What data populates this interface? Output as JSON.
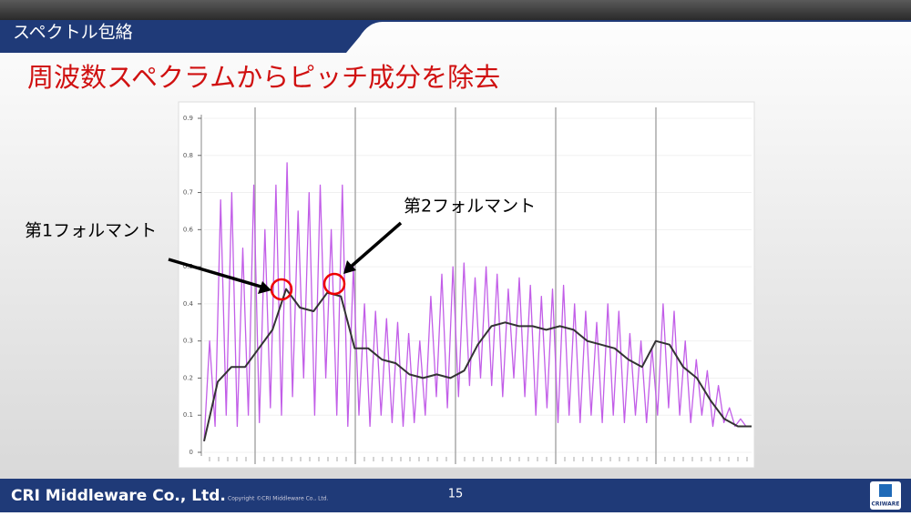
{
  "header": {
    "section": "スペクトル包絡",
    "title": "周波数スペクラムからピッチ成分を除去"
  },
  "chart_data": {
    "type": "line",
    "ylim": [
      0,
      0.9
    ],
    "yticks": [
      0,
      0.1,
      0.2,
      0.3,
      0.4,
      0.5,
      0.6,
      0.7,
      0.8,
      0.9
    ],
    "grid": true,
    "series": [
      {
        "name": "spectrum",
        "color": "#c25ee8",
        "values": [
          0.03,
          0.3,
          0.07,
          0.68,
          0.1,
          0.7,
          0.07,
          0.55,
          0.1,
          0.72,
          0.08,
          0.6,
          0.12,
          0.72,
          0.1,
          0.78,
          0.15,
          0.65,
          0.2,
          0.7,
          0.1,
          0.72,
          0.2,
          0.6,
          0.1,
          0.72,
          0.07,
          0.5,
          0.1,
          0.4,
          0.07,
          0.38,
          0.1,
          0.36,
          0.08,
          0.35,
          0.07,
          0.32,
          0.08,
          0.3,
          0.1,
          0.42,
          0.15,
          0.48,
          0.12,
          0.5,
          0.15,
          0.51,
          0.18,
          0.47,
          0.2,
          0.5,
          0.18,
          0.48,
          0.15,
          0.44,
          0.2,
          0.47,
          0.15,
          0.45,
          0.1,
          0.42,
          0.12,
          0.44,
          0.08,
          0.45,
          0.1,
          0.4,
          0.08,
          0.38,
          0.1,
          0.35,
          0.08,
          0.4,
          0.1,
          0.38,
          0.08,
          0.32,
          0.1,
          0.3,
          0.08,
          0.28,
          0.1,
          0.4,
          0.12,
          0.38,
          0.1,
          0.3,
          0.08,
          0.25,
          0.1,
          0.22,
          0.07,
          0.18,
          0.08,
          0.12,
          0.07,
          0.09,
          0.07,
          0.07
        ]
      },
      {
        "name": "envelope",
        "color": "#333333",
        "values": [
          0.03,
          0.19,
          0.23,
          0.23,
          0.28,
          0.33,
          0.44,
          0.39,
          0.38,
          0.43,
          0.42,
          0.28,
          0.28,
          0.25,
          0.24,
          0.21,
          0.2,
          0.21,
          0.2,
          0.22,
          0.29,
          0.34,
          0.35,
          0.34,
          0.34,
          0.33,
          0.34,
          0.33,
          0.3,
          0.29,
          0.28,
          0.25,
          0.23,
          0.3,
          0.29,
          0.23,
          0.2,
          0.14,
          0.09,
          0.07,
          0.07
        ]
      }
    ],
    "annotations": [
      "第1フォルマント",
      "第2フォルマント"
    ]
  },
  "footer": {
    "company": "CRI Middleware Co., Ltd.",
    "copyright": "Copyright ©CRI Middleware Co., Ltd.",
    "page": "15",
    "logo": "CRIWARE"
  }
}
